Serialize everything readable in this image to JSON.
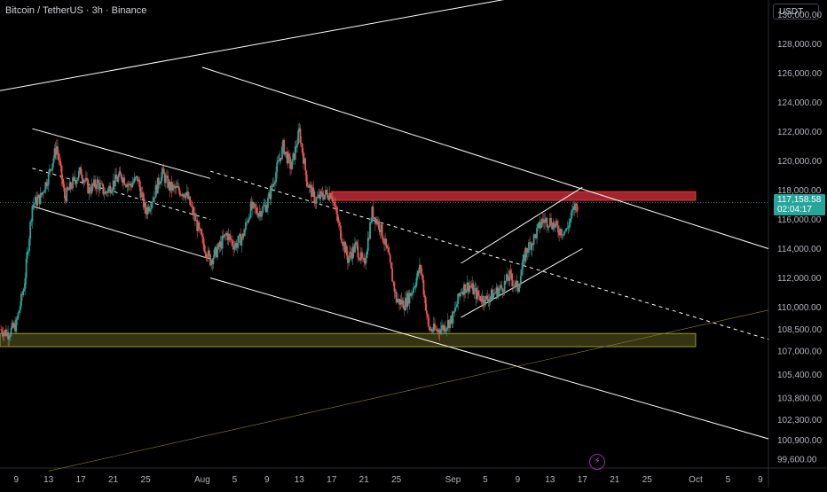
{
  "header": {
    "symbol_title": "Bitcoin / TetherUS · 3h · Binance",
    "currency": "USDT"
  },
  "last_price": {
    "value": "117,158.58",
    "countdown": "02:04:17",
    "price": 117158.58
  },
  "colors": {
    "background": "#000000",
    "candle_up": "#26a69a",
    "candle_down": "#ef5350",
    "resistance_zone": "#b22833",
    "support_zone": "#4a4a1a",
    "lines": "#ffffff"
  },
  "icons": {
    "alert": "lightning-icon"
  },
  "chart_data": {
    "type": "candlestick",
    "title": "",
    "y_axis": {
      "range": [
        99000,
        131000
      ],
      "tick_labels": [
        "130,000.00",
        "128,000.00",
        "126,000.00",
        "124,000.00",
        "122,000.00",
        "120,000.00",
        "118,000.00",
        "116,000.00",
        "114,000.00",
        "112,000.00",
        "110,000.00",
        "108,500.00",
        "107,000.00",
        "105,400.00",
        "103,800.00",
        "102,300.00",
        "100,900.00",
        "99,600.00"
      ],
      "tick_values": [
        130000,
        128000,
        126000,
        124000,
        122000,
        120000,
        118000,
        116000,
        114000,
        112000,
        110000,
        108500,
        107000,
        105400,
        103800,
        102300,
        100900,
        99600
      ]
    },
    "x_axis": {
      "range": [
        "2025-07-07",
        "2025-10-10"
      ],
      "tick_labels": [
        "9",
        "13",
        "17",
        "21",
        "25",
        "Aug",
        "5",
        "9",
        "13",
        "17",
        "21",
        "25",
        "Sep",
        "5",
        "9",
        "13",
        "17",
        "21",
        "25",
        "Oct",
        "5",
        "9"
      ],
      "tick_dates": [
        "2025-07-09",
        "2025-07-13",
        "2025-07-17",
        "2025-07-21",
        "2025-07-25",
        "2025-08-01",
        "2025-08-05",
        "2025-08-09",
        "2025-08-13",
        "2025-08-17",
        "2025-08-21",
        "2025-08-25",
        "2025-09-01",
        "2025-09-05",
        "2025-09-09",
        "2025-09-13",
        "2025-09-17",
        "2025-09-21",
        "2025-09-25",
        "2025-10-01",
        "2025-10-05",
        "2025-10-09"
      ]
    },
    "price_path": [
      [
        "2025-07-07",
        108500
      ],
      [
        "2025-07-08",
        108200
      ],
      [
        "2025-07-09",
        108800
      ],
      [
        "2025-07-10",
        111500
      ],
      [
        "2025-07-11",
        117000
      ],
      [
        "2025-07-12",
        117500
      ],
      [
        "2025-07-13",
        119000
      ],
      [
        "2025-07-14",
        121000
      ],
      [
        "2025-07-15",
        117500
      ],
      [
        "2025-07-16",
        118500
      ],
      [
        "2025-07-17",
        119300
      ],
      [
        "2025-07-18",
        118000
      ],
      [
        "2025-07-19",
        118500
      ],
      [
        "2025-07-20",
        117800
      ],
      [
        "2025-07-21",
        118500
      ],
      [
        "2025-07-22",
        119000
      ],
      [
        "2025-07-23",
        118300
      ],
      [
        "2025-07-24",
        118800
      ],
      [
        "2025-07-25",
        116500
      ],
      [
        "2025-07-26",
        117600
      ],
      [
        "2025-07-27",
        119200
      ],
      [
        "2025-07-28",
        118200
      ],
      [
        "2025-07-29",
        118000
      ],
      [
        "2025-07-30",
        117800
      ],
      [
        "2025-07-31",
        116200
      ],
      [
        "2025-08-01",
        114500
      ],
      [
        "2025-08-02",
        113200
      ],
      [
        "2025-08-03",
        114000
      ],
      [
        "2025-08-04",
        115000
      ],
      [
        "2025-08-05",
        114200
      ],
      [
        "2025-08-06",
        114800
      ],
      [
        "2025-08-07",
        116800
      ],
      [
        "2025-08-08",
        116500
      ],
      [
        "2025-08-09",
        117000
      ],
      [
        "2025-08-10",
        119000
      ],
      [
        "2025-08-11",
        121000
      ],
      [
        "2025-08-12",
        119500
      ],
      [
        "2025-08-13",
        122000
      ],
      [
        "2025-08-14",
        118500
      ],
      [
        "2025-08-15",
        117300
      ],
      [
        "2025-08-16",
        117700
      ],
      [
        "2025-08-17",
        117800
      ],
      [
        "2025-08-18",
        115300
      ],
      [
        "2025-08-19",
        113300
      ],
      [
        "2025-08-20",
        114200
      ],
      [
        "2025-08-21",
        112800
      ],
      [
        "2025-08-22",
        116500
      ],
      [
        "2025-08-23",
        115500
      ],
      [
        "2025-08-24",
        113500
      ],
      [
        "2025-08-25",
        110500
      ],
      [
        "2025-08-26",
        110200
      ],
      [
        "2025-08-27",
        111200
      ],
      [
        "2025-08-28",
        112800
      ],
      [
        "2025-08-29",
        108500
      ],
      [
        "2025-08-30",
        108400
      ],
      [
        "2025-08-31",
        108700
      ],
      [
        "2025-09-01",
        109300
      ],
      [
        "2025-09-02",
        111200
      ],
      [
        "2025-09-03",
        111500
      ],
      [
        "2025-09-04",
        110800
      ],
      [
        "2025-09-05",
        110500
      ],
      [
        "2025-09-06",
        110900
      ],
      [
        "2025-09-07",
        111300
      ],
      [
        "2025-09-08",
        112100
      ],
      [
        "2025-09-09",
        111300
      ],
      [
        "2025-09-10",
        113800
      ],
      [
        "2025-09-11",
        114700
      ],
      [
        "2025-09-12",
        115900
      ],
      [
        "2025-09-13",
        115900
      ],
      [
        "2025-09-14",
        115300
      ],
      [
        "2025-09-15",
        115200
      ],
      [
        "2025-09-16",
        116800
      ],
      [
        "2025-09-17",
        117158
      ]
    ],
    "zones": [
      {
        "type": "resistance",
        "from": "2025-08-17",
        "to": "2025-10-01",
        "y_low": 117300,
        "y_high": 117900
      },
      {
        "type": "support",
        "from": "2025-07-07",
        "to": "2025-10-01",
        "y_low": 107300,
        "y_high": 108200
      }
    ],
    "trendlines": [
      {
        "style": "solid",
        "x1": "2025-07-07",
        "y1": 124800,
        "x2": "2025-09-09",
        "y2": 131200
      },
      {
        "style": "solid",
        "x1": "2025-08-01",
        "y1": 126400,
        "x2": "2025-10-10",
        "y2": 114000
      },
      {
        "style": "solid",
        "x1": "2025-07-11",
        "y1": 122200,
        "x2": "2025-08-02",
        "y2": 118800
      },
      {
        "style": "solid",
        "x1": "2025-07-11",
        "y1": 116900,
        "x2": "2025-08-02",
        "y2": 113300
      },
      {
        "style": "dashed",
        "x1": "2025-07-11",
        "y1": 119500,
        "x2": "2025-08-02",
        "y2": 116000
      },
      {
        "style": "dashed",
        "x1": "2025-08-02",
        "y1": 119300,
        "x2": "2025-10-10",
        "y2": 107800
      },
      {
        "style": "solid",
        "x1": "2025-08-02",
        "y1": 112000,
        "x2": "2025-10-10",
        "y2": 101000
      },
      {
        "style": "solid",
        "x1": "2025-09-02",
        "y1": 113000,
        "x2": "2025-09-17",
        "y2": 118200
      },
      {
        "style": "solid",
        "x1": "2025-09-02",
        "y1": 109300,
        "x2": "2025-09-17",
        "y2": 114000
      },
      {
        "style": "thin",
        "x1": "2025-07-13",
        "y1": 98800,
        "x2": "2025-10-10",
        "y2": 109800
      }
    ],
    "last_price_line": 117158.58,
    "grid": false
  }
}
